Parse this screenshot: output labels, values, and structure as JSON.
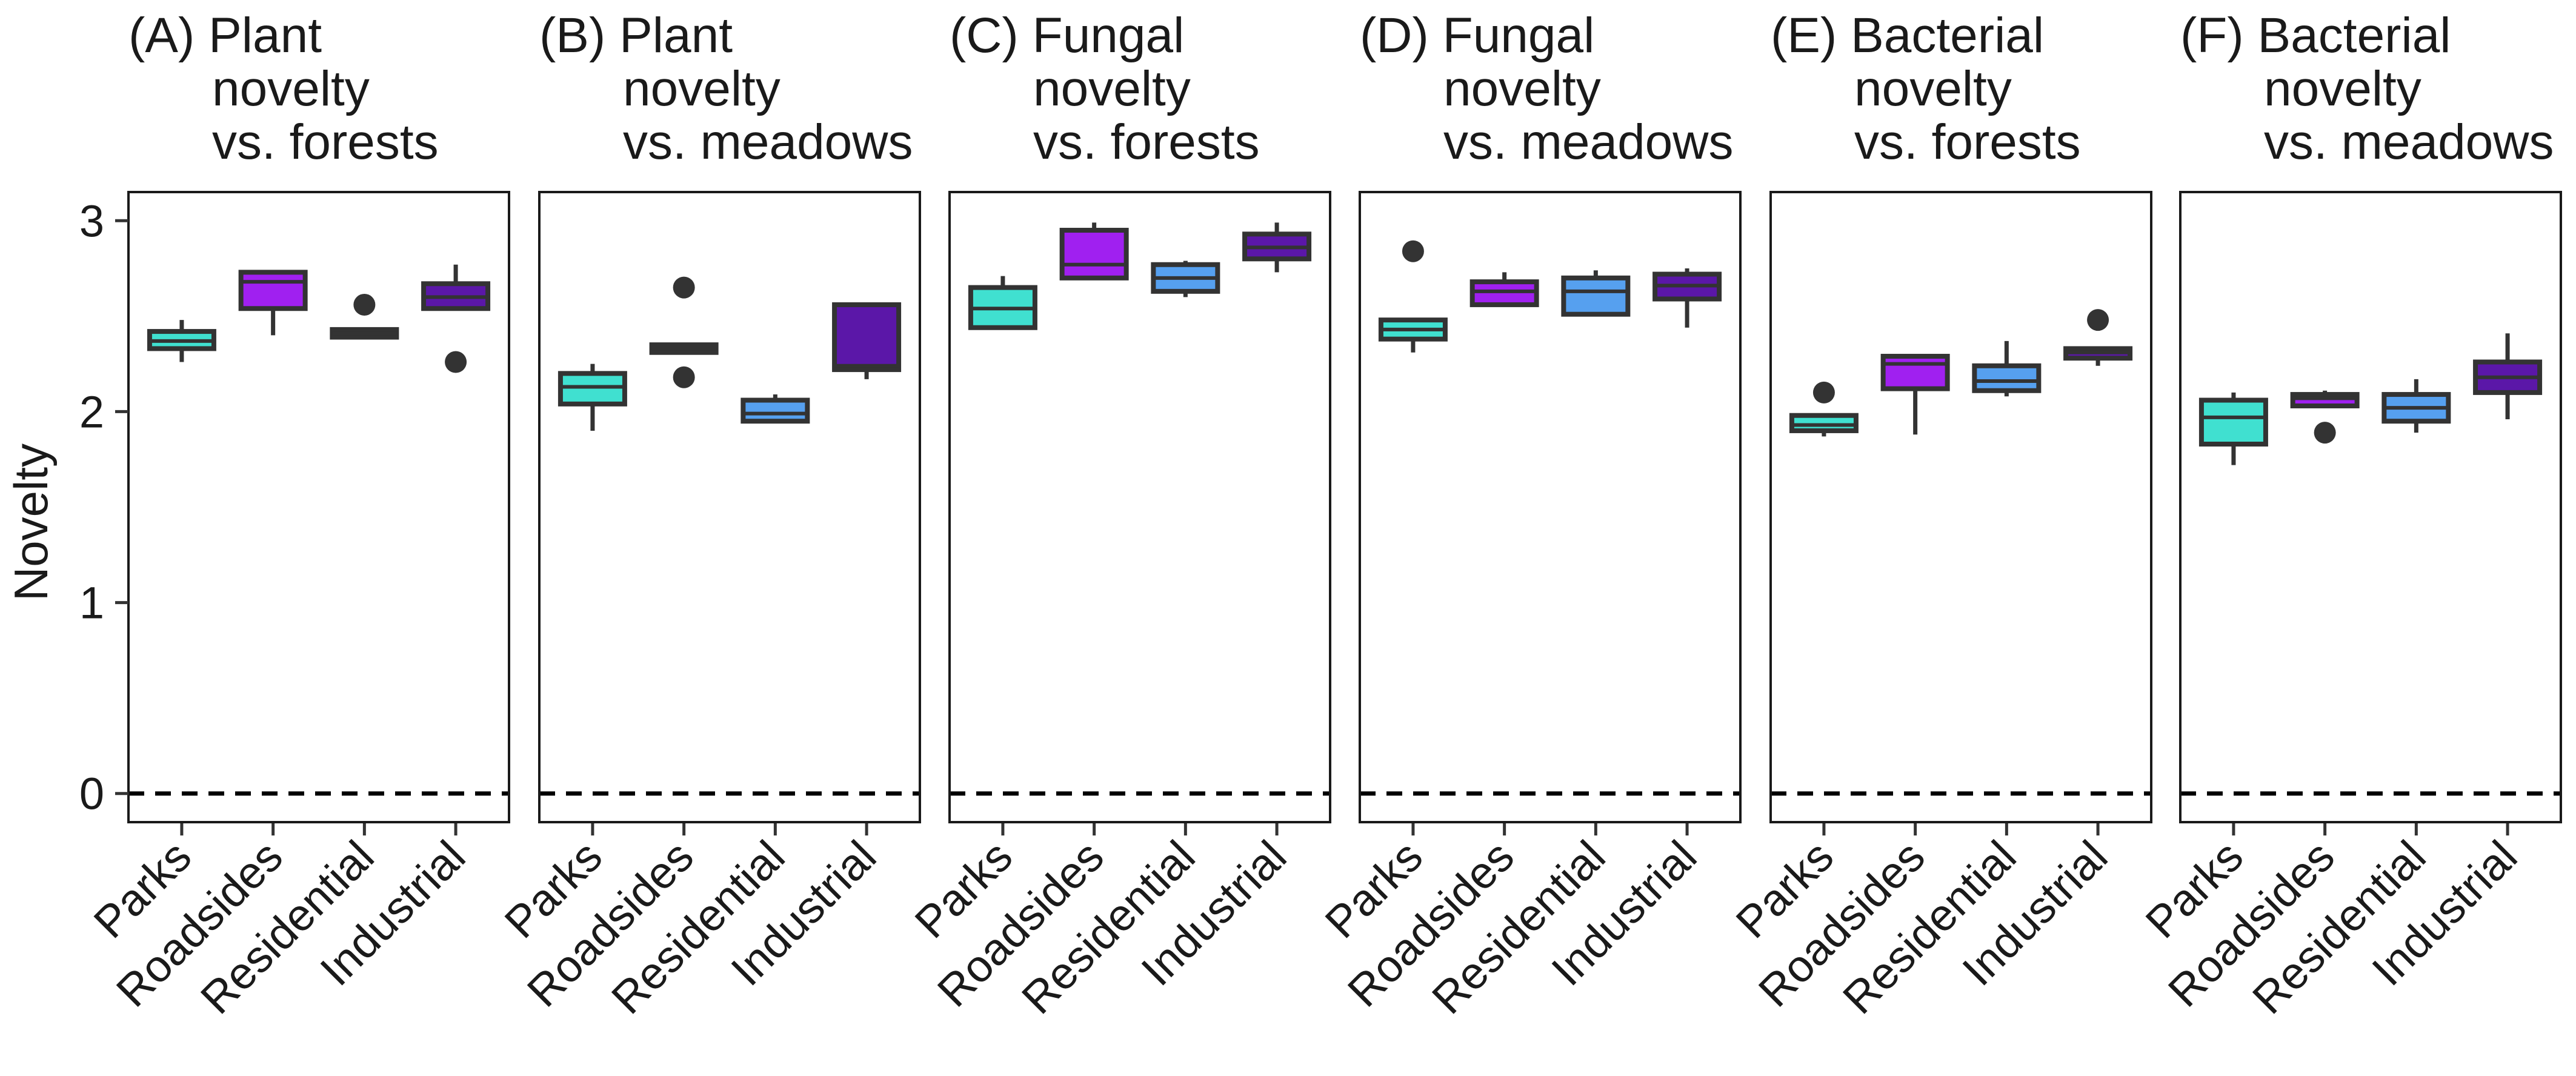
{
  "y_axis_title": "Novelty",
  "colors": {
    "Parks": "#40e0d0",
    "Roadsides": "#a020f0",
    "Residential": "#56a0ef",
    "Industrial": "#5b17a8",
    "box_stroke": "#333333",
    "reference_line": "#000000"
  },
  "chart_data": [
    {
      "type": "box",
      "title_lines": [
        "(A) Plant",
        "novelty",
        "vs. forests"
      ],
      "categories": [
        "Parks",
        "Roadsides",
        "Residential",
        "Industrial"
      ],
      "ylim": [
        -0.15,
        3.15
      ],
      "yticks": [
        0,
        1,
        2,
        3
      ],
      "reference_line": 0,
      "boxes": [
        {
          "category": "Parks",
          "whisker_low": 2.26,
          "q1": 2.33,
          "median": 2.37,
          "q3": 2.42,
          "whisker_high": 2.48,
          "outliers": []
        },
        {
          "category": "Roadsides",
          "whisker_low": 2.4,
          "q1": 2.54,
          "median": 2.68,
          "q3": 2.73,
          "whisker_high": 2.74,
          "outliers": []
        },
        {
          "category": "Residential",
          "whisker_low": 2.39,
          "q1": 2.39,
          "median": 2.41,
          "q3": 2.43,
          "whisker_high": 2.44,
          "outliers": [
            2.56
          ]
        },
        {
          "category": "Industrial",
          "whisker_low": 2.54,
          "q1": 2.54,
          "median": 2.6,
          "q3": 2.67,
          "whisker_high": 2.77,
          "outliers": [
            2.26
          ]
        }
      ]
    },
    {
      "type": "box",
      "title_lines": [
        "(B) Plant",
        "novelty",
        "vs. meadows"
      ],
      "categories": [
        "Parks",
        "Roadsides",
        "Residential",
        "Industrial"
      ],
      "ylim": [
        -0.15,
        3.15
      ],
      "yticks": [
        0,
        1,
        2,
        3
      ],
      "reference_line": 0,
      "boxes": [
        {
          "category": "Parks",
          "whisker_low": 1.9,
          "q1": 2.04,
          "median": 2.13,
          "q3": 2.2,
          "whisker_high": 2.25,
          "outliers": []
        },
        {
          "category": "Roadsides",
          "whisker_low": 2.31,
          "q1": 2.31,
          "median": 2.33,
          "q3": 2.35,
          "whisker_high": 2.36,
          "outliers": [
            2.65,
            2.18
          ]
        },
        {
          "category": "Residential",
          "whisker_low": 1.94,
          "q1": 1.95,
          "median": 1.99,
          "q3": 2.06,
          "whisker_high": 2.09,
          "outliers": []
        },
        {
          "category": "Industrial",
          "whisker_low": 2.17,
          "q1": 2.22,
          "median": 2.24,
          "q3": 2.56,
          "whisker_high": 2.57,
          "outliers": []
        }
      ]
    },
    {
      "type": "box",
      "title_lines": [
        "(C) Fungal",
        "novelty",
        "vs. forests"
      ],
      "categories": [
        "Parks",
        "Roadsides",
        "Residential",
        "Industrial"
      ],
      "ylim": [
        -0.15,
        3.15
      ],
      "yticks": [
        0,
        1,
        2,
        3
      ],
      "reference_line": 0,
      "boxes": [
        {
          "category": "Parks",
          "whisker_low": 2.43,
          "q1": 2.44,
          "median": 2.54,
          "q3": 2.65,
          "whisker_high": 2.71,
          "outliers": []
        },
        {
          "category": "Roadsides",
          "whisker_low": 2.7,
          "q1": 2.7,
          "median": 2.77,
          "q3": 2.95,
          "whisker_high": 2.99,
          "outliers": []
        },
        {
          "category": "Residential",
          "whisker_low": 2.6,
          "q1": 2.63,
          "median": 2.7,
          "q3": 2.77,
          "whisker_high": 2.79,
          "outliers": []
        },
        {
          "category": "Industrial",
          "whisker_low": 2.73,
          "q1": 2.8,
          "median": 2.86,
          "q3": 2.93,
          "whisker_high": 2.99,
          "outliers": []
        }
      ]
    },
    {
      "type": "box",
      "title_lines": [
        "(D) Fungal",
        "novelty",
        "vs. meadows"
      ],
      "categories": [
        "Parks",
        "Roadsides",
        "Residential",
        "Industrial"
      ],
      "ylim": [
        -0.15,
        3.15
      ],
      "yticks": [
        0,
        1,
        2,
        3
      ],
      "reference_line": 0,
      "boxes": [
        {
          "category": "Parks",
          "whisker_low": 2.31,
          "q1": 2.38,
          "median": 2.43,
          "q3": 2.48,
          "whisker_high": 2.49,
          "outliers": [
            2.84
          ]
        },
        {
          "category": "Roadsides",
          "whisker_low": 2.56,
          "q1": 2.56,
          "median": 2.63,
          "q3": 2.68,
          "whisker_high": 2.73,
          "outliers": []
        },
        {
          "category": "Residential",
          "whisker_low": 2.51,
          "q1": 2.51,
          "median": 2.63,
          "q3": 2.7,
          "whisker_high": 2.74,
          "outliers": []
        },
        {
          "category": "Industrial",
          "whisker_low": 2.44,
          "q1": 2.59,
          "median": 2.66,
          "q3": 2.72,
          "whisker_high": 2.75,
          "outliers": []
        }
      ]
    },
    {
      "type": "box",
      "title_lines": [
        "(E) Bacterial",
        "novelty",
        "vs. forests"
      ],
      "categories": [
        "Parks",
        "Roadsides",
        "Residential",
        "Industrial"
      ],
      "ylim": [
        -0.15,
        3.15
      ],
      "yticks": [
        0,
        1,
        2,
        3
      ],
      "reference_line": 0,
      "boxes": [
        {
          "category": "Parks",
          "whisker_low": 1.87,
          "q1": 1.9,
          "median": 1.93,
          "q3": 1.98,
          "whisker_high": 1.98,
          "outliers": [
            2.1
          ]
        },
        {
          "category": "Roadsides",
          "whisker_low": 1.88,
          "q1": 2.12,
          "median": 2.25,
          "q3": 2.29,
          "whisker_high": 2.3,
          "outliers": []
        },
        {
          "category": "Residential",
          "whisker_low": 2.08,
          "q1": 2.11,
          "median": 2.16,
          "q3": 2.24,
          "whisker_high": 2.37,
          "outliers": []
        },
        {
          "category": "Industrial",
          "whisker_low": 2.24,
          "q1": 2.28,
          "median": 2.31,
          "q3": 2.33,
          "whisker_high": 2.34,
          "outliers": [
            2.48
          ]
        }
      ]
    },
    {
      "type": "box",
      "title_lines": [
        "(F) Bacterial",
        "novelty",
        "vs. meadows"
      ],
      "categories": [
        "Parks",
        "Roadsides",
        "Residential",
        "Industrial"
      ],
      "ylim": [
        -0.15,
        3.15
      ],
      "yticks": [
        0,
        1,
        2,
        3
      ],
      "reference_line": 0,
      "boxes": [
        {
          "category": "Parks",
          "whisker_low": 1.72,
          "q1": 1.83,
          "median": 1.97,
          "q3": 2.06,
          "whisker_high": 2.1,
          "outliers": []
        },
        {
          "category": "Roadsides",
          "whisker_low": 2.03,
          "q1": 2.03,
          "median": 2.07,
          "q3": 2.09,
          "whisker_high": 2.11,
          "outliers": [
            1.89
          ]
        },
        {
          "category": "Residential",
          "whisker_low": 1.89,
          "q1": 1.95,
          "median": 2.02,
          "q3": 2.09,
          "whisker_high": 2.17,
          "outliers": []
        },
        {
          "category": "Industrial",
          "whisker_low": 1.96,
          "q1": 2.1,
          "median": 2.18,
          "q3": 2.26,
          "whisker_high": 2.41,
          "outliers": []
        }
      ]
    }
  ]
}
